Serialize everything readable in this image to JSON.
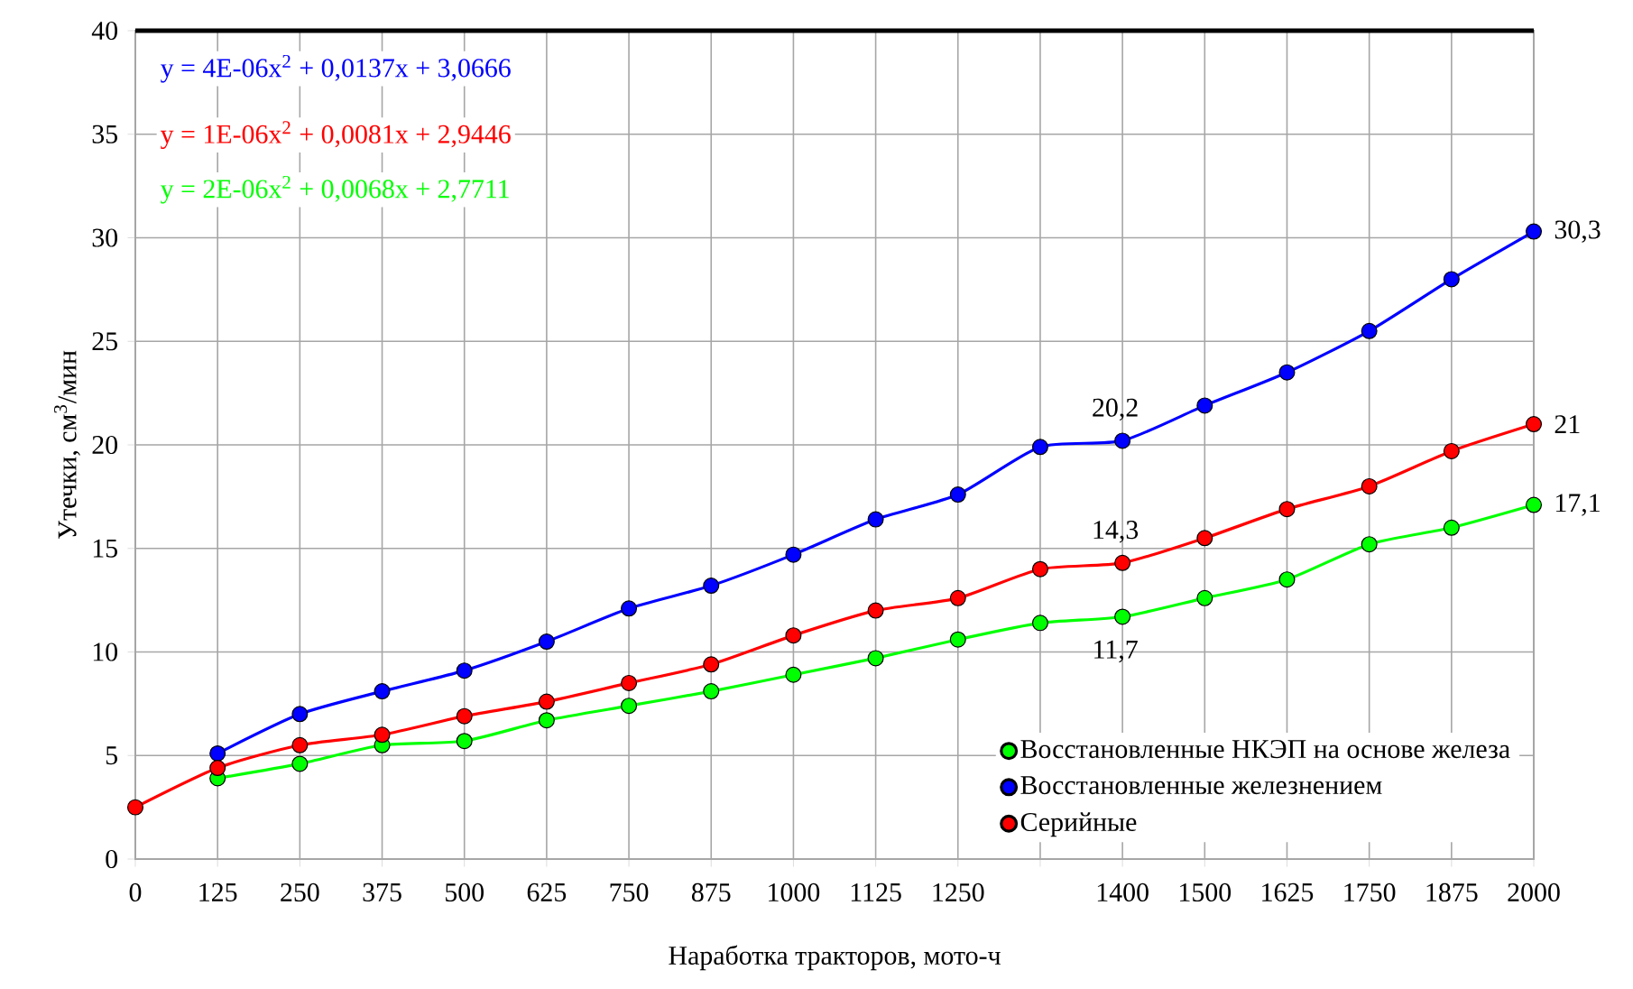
{
  "chart_data": {
    "type": "line",
    "xlabel": "Наработка тракторов, мото-ч",
    "ylabel": "Утечки, см$^{3}$/мин",
    "categories": [
      "0",
      "125",
      "250",
      "375",
      "500",
      "625",
      "750",
      "875",
      "1000",
      "1125",
      "1250",
      null,
      "1400",
      "1500",
      "1625",
      "1750",
      "1875",
      "2000"
    ],
    "series": [
      {
        "name": "Восстановленные НКЭП на основе железа",
        "color": "#00ff00",
        "values": [
          null,
          3.9,
          4.6,
          5.5,
          5.7,
          6.7,
          7.4,
          8.1,
          8.9,
          9.7,
          10.6,
          11.4,
          11.7,
          12.6,
          13.5,
          15.2,
          16.0,
          17.1
        ],
        "value_labels": [
          null,
          null,
          null,
          null,
          null,
          null,
          null,
          null,
          null,
          null,
          null,
          null,
          "11,7",
          null,
          null,
          null,
          null,
          "17,1"
        ]
      },
      {
        "name": "Восстановленные железнением",
        "color": "#0000ff",
        "values": [
          null,
          5.1,
          7.0,
          8.1,
          9.1,
          10.5,
          12.1,
          13.2,
          14.7,
          16.4,
          17.6,
          19.9,
          20.2,
          21.9,
          23.5,
          25.5,
          28.0,
          30.3
        ],
        "value_labels": [
          null,
          null,
          null,
          null,
          null,
          null,
          null,
          null,
          null,
          null,
          null,
          null,
          "20,2",
          null,
          null,
          null,
          null,
          "30,3"
        ]
      },
      {
        "name": "Серийные",
        "color": "#ff0000",
        "values": [
          2.5,
          4.4,
          5.5,
          6.0,
          6.9,
          7.6,
          8.5,
          9.4,
          10.8,
          12.0,
          12.6,
          14.0,
          14.3,
          15.5,
          16.9,
          18.0,
          19.7,
          21
        ],
        "value_labels": [
          null,
          null,
          null,
          null,
          null,
          null,
          null,
          null,
          null,
          null,
          null,
          null,
          "14,3",
          null,
          null,
          null,
          null,
          "21"
        ]
      }
    ],
    "annotations": [
      "y = 4E-06x$^{2}$ + 0,0137x + 3,0666",
      "y = 1E-06x$^{2}$ + 0,0081x + 2,9446",
      "y = 2E-06x$^{2}$ + 0,0068x + 2,7711"
    ],
    "ylim": [
      0,
      40
    ],
    "yticks": [
      0,
      5,
      10,
      15,
      20,
      25,
      30,
      35,
      40
    ],
    "grid": true,
    "legend": "bottom right",
    "marker": "circle",
    "line_style": "solid"
  }
}
